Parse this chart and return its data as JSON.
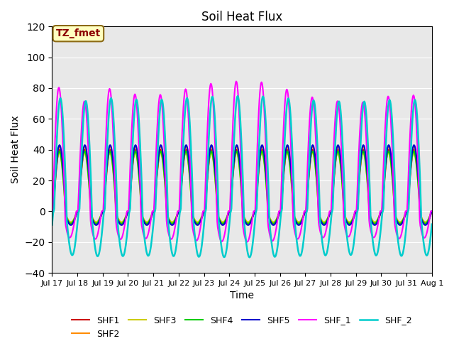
{
  "title": "Soil Heat Flux",
  "ylabel": "Soil Heat Flux",
  "xlabel": "Time",
  "annotation_text": "TZ_fmet",
  "annotation_bgcolor": "#ffffc0",
  "annotation_edgecolor": "#8B6914",
  "annotation_textcolor": "#8B0000",
  "ylim": [
    -40,
    120
  ],
  "background_color": "#e8e8e8",
  "series": {
    "SHF1": {
      "color": "#cc0000",
      "lw": 1.5
    },
    "SHF2": {
      "color": "#ff8c00",
      "lw": 1.5
    },
    "SHF3": {
      "color": "#cccc00",
      "lw": 1.5
    },
    "SHF4": {
      "color": "#00cc00",
      "lw": 1.5
    },
    "SHF5": {
      "color": "#0000cc",
      "lw": 1.5
    },
    "SHF_1": {
      "color": "#ff00ff",
      "lw": 1.5
    },
    "SHF_2": {
      "color": "#00cccc",
      "lw": 1.8
    }
  },
  "xtick_labels": [
    "Jul 17",
    "Jul 18",
    "Jul 19",
    "Jul 20",
    "Jul 21",
    "Jul 22",
    "Jul 23",
    "Jul 24",
    "Jul 25",
    "Jul 26",
    "Jul 27",
    "Jul 28",
    "Jul 29",
    "Jul 30",
    "Jul 31",
    "Aug 1"
  ],
  "ytick_values": [
    -40,
    -20,
    0,
    20,
    40,
    60,
    80,
    100,
    120
  ],
  "figsize": [
    6.4,
    4.8
  ],
  "dpi": 100
}
